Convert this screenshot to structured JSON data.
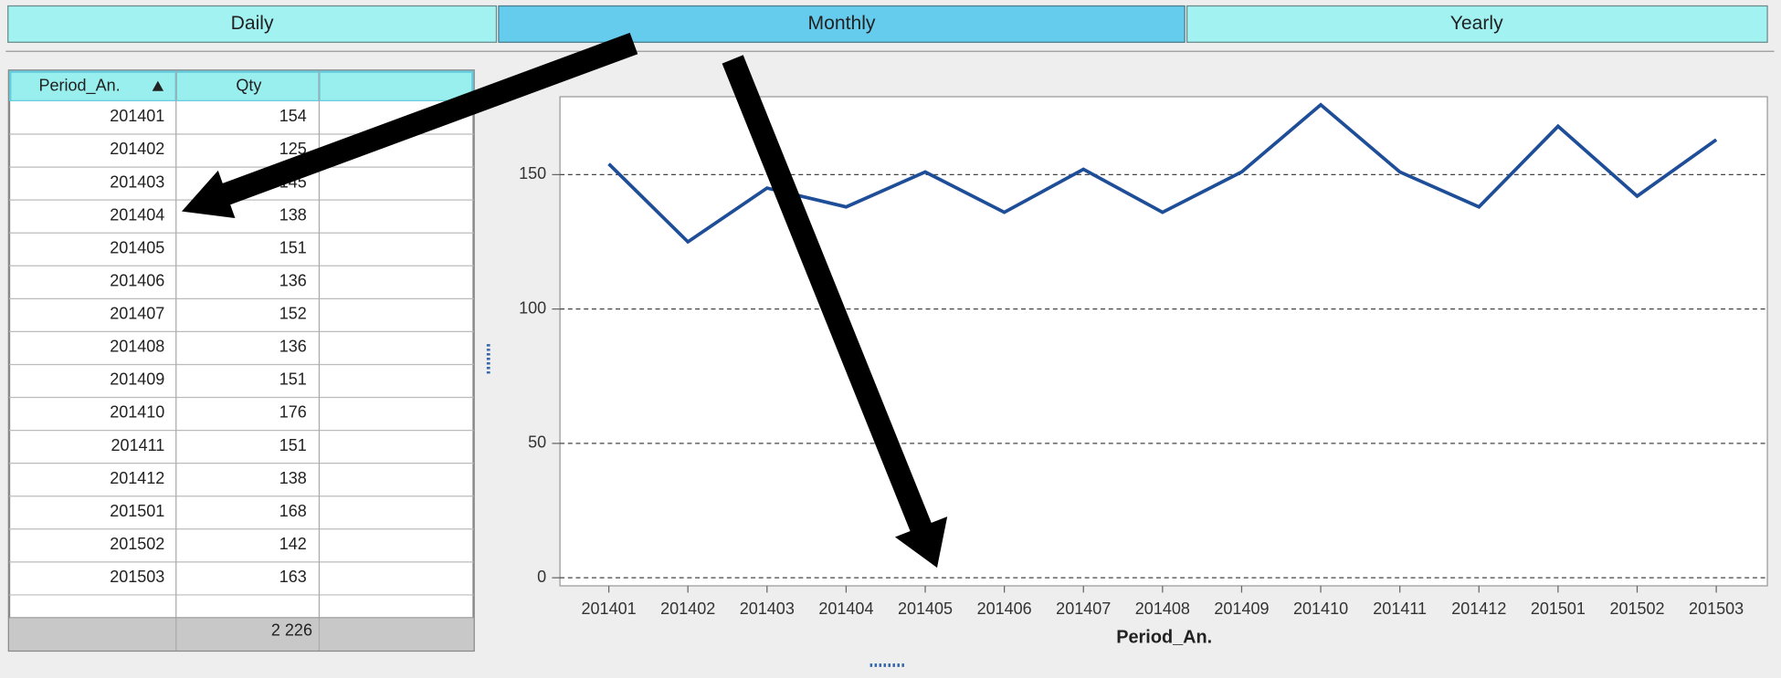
{
  "tabs": [
    "Daily",
    "Monthly",
    "Yearly"
  ],
  "table": {
    "columns": [
      "Period_An.",
      "Qty"
    ],
    "rows": [
      [
        201401,
        154
      ],
      [
        201402,
        125
      ],
      [
        201403,
        145
      ],
      [
        201404,
        138
      ],
      [
        201405,
        151
      ],
      [
        201406,
        136
      ],
      [
        201407,
        152
      ],
      [
        201408,
        136
      ],
      [
        201409,
        151
      ],
      [
        201410,
        176
      ],
      [
        201411,
        151
      ],
      [
        201412,
        138
      ],
      [
        201501,
        168
      ],
      [
        201502,
        142
      ],
      [
        201503,
        163
      ]
    ],
    "total": "2 226"
  },
  "chart_data": {
    "type": "line",
    "xlabel": "Period_An.",
    "categories": [
      "201401",
      "201402",
      "201403",
      "201404",
      "201405",
      "201406",
      "201407",
      "201408",
      "201409",
      "201410",
      "201411",
      "201412",
      "201501",
      "201502",
      "201503"
    ],
    "values": [
      154,
      125,
      145,
      138,
      151,
      136,
      152,
      136,
      151,
      176,
      151,
      138,
      168,
      142,
      163
    ],
    "color": "#1f4e99",
    "ylim": [
      -3,
      179
    ],
    "yticks": [
      0,
      50,
      100,
      150
    ],
    "grid": true
  }
}
